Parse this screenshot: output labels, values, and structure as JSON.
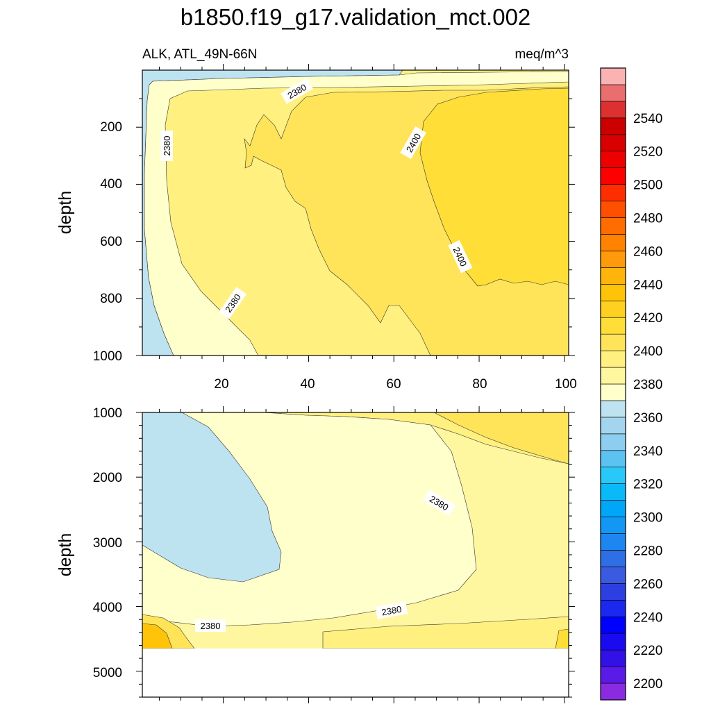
{
  "chart_data": {
    "type": "contour",
    "title": "b1850.f19_g17.validation_mct.002",
    "variable_label": "ALK, ATL_49N-66N",
    "units_label": "meq/m^3",
    "ylabel": "depth",
    "panels": [
      {
        "name": "upper",
        "ylim": [
          1000,
          0
        ],
        "xlim": [
          1,
          101
        ],
        "yticks": [
          "200",
          "400",
          "600",
          "800",
          "1000"
        ],
        "xticks": [
          "20",
          "40",
          "60",
          "80",
          "100"
        ],
        "contour_labels": [
          "2380",
          "2380",
          "2380",
          "2400",
          "2400"
        ]
      },
      {
        "name": "lower",
        "ylim": [
          5400,
          1000
        ],
        "xlim": [
          1,
          101
        ],
        "yticks": [
          "1000",
          "2000",
          "3000",
          "4000",
          "5000"
        ],
        "contour_labels": [
          "2380",
          "2380",
          "2380"
        ]
      }
    ],
    "colorbar": {
      "levels": [
        2190,
        2200,
        2210,
        2220,
        2230,
        2240,
        2250,
        2260,
        2270,
        2280,
        2290,
        2300,
        2310,
        2320,
        2330,
        2340,
        2350,
        2360,
        2370,
        2380,
        2390,
        2400,
        2410,
        2420,
        2430,
        2440,
        2450,
        2460,
        2470,
        2480,
        2490,
        2500,
        2510,
        2520,
        2530,
        2540,
        2550
      ],
      "tick_labels": [
        "2200",
        "2220",
        "2240",
        "2260",
        "2280",
        "2300",
        "2320",
        "2340",
        "2360",
        "2380",
        "2400",
        "2420",
        "2440",
        "2460",
        "2480",
        "2500",
        "2520",
        "2540"
      ],
      "colors": [
        "#8a2be2",
        "#5a1ae8",
        "#3211e6",
        "#1a0af0",
        "#0000ff",
        "#1a28f0",
        "#2d3fe0",
        "#3a5ae0",
        "#2e6fe6",
        "#1e86f0",
        "#1297f5",
        "#00a6f7",
        "#0bb8f8",
        "#28c8f8",
        "#5cc3f0",
        "#8ccdf0",
        "#a3d6ee",
        "#bde2f0",
        "#ffffcc",
        "#fff6a0",
        "#fff080",
        "#ffe45a",
        "#ffde38",
        "#ffd020",
        "#ffc40a",
        "#ffb40c",
        "#ff9a0a",
        "#ff8200",
        "#ff6c00",
        "#ff5000",
        "#ff2e00",
        "#ff0000",
        "#ee0000",
        "#d80000",
        "#cc0000",
        "#dd3030",
        "#ea6e6e",
        "#fbb2b2"
      ]
    }
  }
}
